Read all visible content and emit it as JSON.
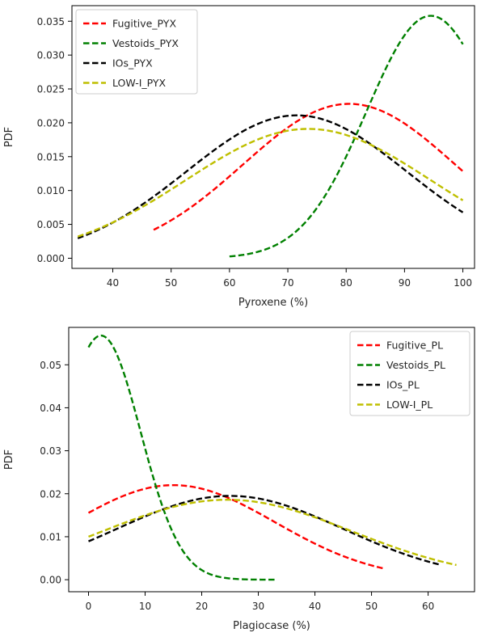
{
  "chart_data": [
    {
      "type": "line",
      "xlabel": "Pyroxene (%)",
      "ylabel": "PDF",
      "xlim": [
        33,
        102
      ],
      "ylim": [
        -0.0015,
        0.0373
      ],
      "xticks": [
        40,
        50,
        60,
        70,
        80,
        90,
        100
      ],
      "yticks": [
        0.0,
        0.005,
        0.01,
        0.015,
        0.02,
        0.025,
        0.03,
        0.035
      ],
      "ytick_labels": [
        "0.000",
        "0.005",
        "0.010",
        "0.015",
        "0.020",
        "0.025",
        "0.030",
        "0.035"
      ],
      "grid": false,
      "legend": "top-left",
      "series": [
        {
          "name": "Fugitive_PYX",
          "color": "#ff0000",
          "kind": "gauss",
          "mu": 80.5,
          "sigma": 18.2,
          "peak": 0.0228,
          "x_range": [
            47,
            100
          ]
        },
        {
          "name": "Vestoids_PYX",
          "color": "#008000",
          "kind": "gauss",
          "mu": 94.5,
          "sigma": 11.0,
          "peak": 0.0358,
          "x_range": [
            60,
            100
          ]
        },
        {
          "name": "IOs_PYX",
          "color": "#000000",
          "kind": "gauss",
          "mu": 71.5,
          "sigma": 18.9,
          "peak": 0.0211,
          "x_range": [
            34,
            100
          ]
        },
        {
          "name": "LOW-I_PYX",
          "color": "#bfbf00",
          "kind": "gauss",
          "mu": 73.5,
          "sigma": 20.9,
          "peak": 0.0191,
          "x_range": [
            34,
            100
          ]
        }
      ]
    },
    {
      "type": "line",
      "xlabel": "Plagiocase (%)",
      "ylabel": "PDF",
      "xlim": [
        -3.5,
        68.2
      ],
      "ylim": [
        -0.0028,
        0.0587
      ],
      "xticks": [
        0,
        10,
        20,
        30,
        40,
        50,
        60
      ],
      "yticks": [
        0.0,
        0.01,
        0.02,
        0.03,
        0.04,
        0.05
      ],
      "ytick_labels": [
        "0.00",
        "0.01",
        "0.02",
        "0.03",
        "0.04",
        "0.05"
      ],
      "grid": false,
      "legend": "top-right",
      "series": [
        {
          "name": "Fugitive_PL",
          "color": "#ff0000",
          "kind": "gauss",
          "mu": 15.0,
          "sigma": 18.0,
          "peak": 0.022,
          "x_range": [
            0,
            52
          ]
        },
        {
          "name": "Vestoids_PL",
          "color": "#008000",
          "kind": "gauss",
          "mu": 2.2,
          "sigma": 7.0,
          "peak": 0.0568,
          "x_range": [
            0,
            33
          ]
        },
        {
          "name": "IOs_PL",
          "color": "#000000",
          "kind": "gauss",
          "mu": 25.0,
          "sigma": 20.0,
          "peak": 0.0195,
          "x_range": [
            0,
            62
          ]
        },
        {
          "name": "LOW-I_PL",
          "color": "#bfbf00",
          "kind": "gauss",
          "mu": 24.5,
          "sigma": 22.0,
          "peak": 0.0186,
          "x_range": [
            0,
            65
          ]
        }
      ]
    }
  ]
}
